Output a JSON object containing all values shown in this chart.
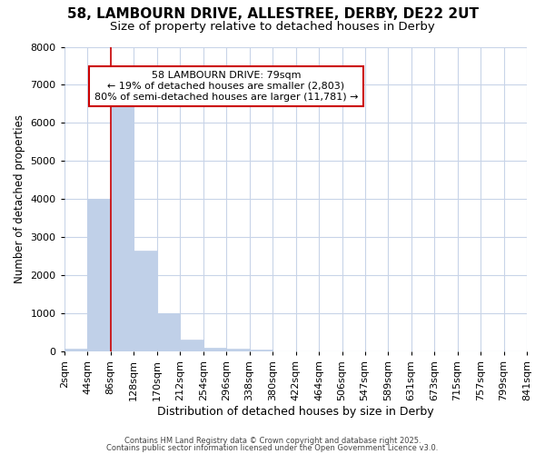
{
  "title1": "58, LAMBOURN DRIVE, ALLESTREE, DERBY, DE22 2UT",
  "title2": "Size of property relative to detached houses in Derby",
  "xlabel": "Distribution of detached houses by size in Derby",
  "ylabel": "Number of detached properties",
  "background_color": "#ffffff",
  "plot_bg_color": "#ffffff",
  "grid_color": "#c8d4e8",
  "bar_color": "#c0d0e8",
  "bar_edge_color": "#c0d0e8",
  "bins": [
    2,
    44,
    86,
    128,
    170,
    212,
    254,
    296,
    338,
    380,
    422,
    464,
    506,
    547,
    589,
    631,
    673,
    715,
    757,
    799,
    841
  ],
  "bin_labels": [
    "2sqm",
    "44sqm",
    "86sqm",
    "128sqm",
    "170sqm",
    "212sqm",
    "254sqm",
    "296sqm",
    "338sqm",
    "380sqm",
    "422sqm",
    "464sqm",
    "506sqm",
    "547sqm",
    "589sqm",
    "631sqm",
    "673sqm",
    "715sqm",
    "757sqm",
    "799sqm",
    "841sqm"
  ],
  "bar_heights": [
    80,
    4000,
    6650,
    2650,
    1000,
    320,
    110,
    70,
    50,
    0,
    0,
    0,
    0,
    0,
    0,
    0,
    0,
    0,
    0,
    0
  ],
  "ylim": [
    0,
    8000
  ],
  "yticks": [
    0,
    1000,
    2000,
    3000,
    4000,
    5000,
    6000,
    7000,
    8000
  ],
  "vline_x": 86,
  "vline_color": "#cc0000",
  "annotation_line1": "58 LAMBOURN DRIVE: 79sqm",
  "annotation_line2": "← 19% of detached houses are smaller (2,803)",
  "annotation_line3": "80% of semi-detached houses are larger (11,781) →",
  "annotation_box_color": "#cc0000",
  "footnote1": "Contains HM Land Registry data © Crown copyright and database right 2025.",
  "footnote2": "Contains public sector information licensed under the Open Government Licence v3.0.",
  "title1_fontsize": 11,
  "title2_fontsize": 9.5,
  "xlabel_fontsize": 9,
  "ylabel_fontsize": 8.5,
  "tick_fontsize": 8,
  "footnote_fontsize": 6
}
